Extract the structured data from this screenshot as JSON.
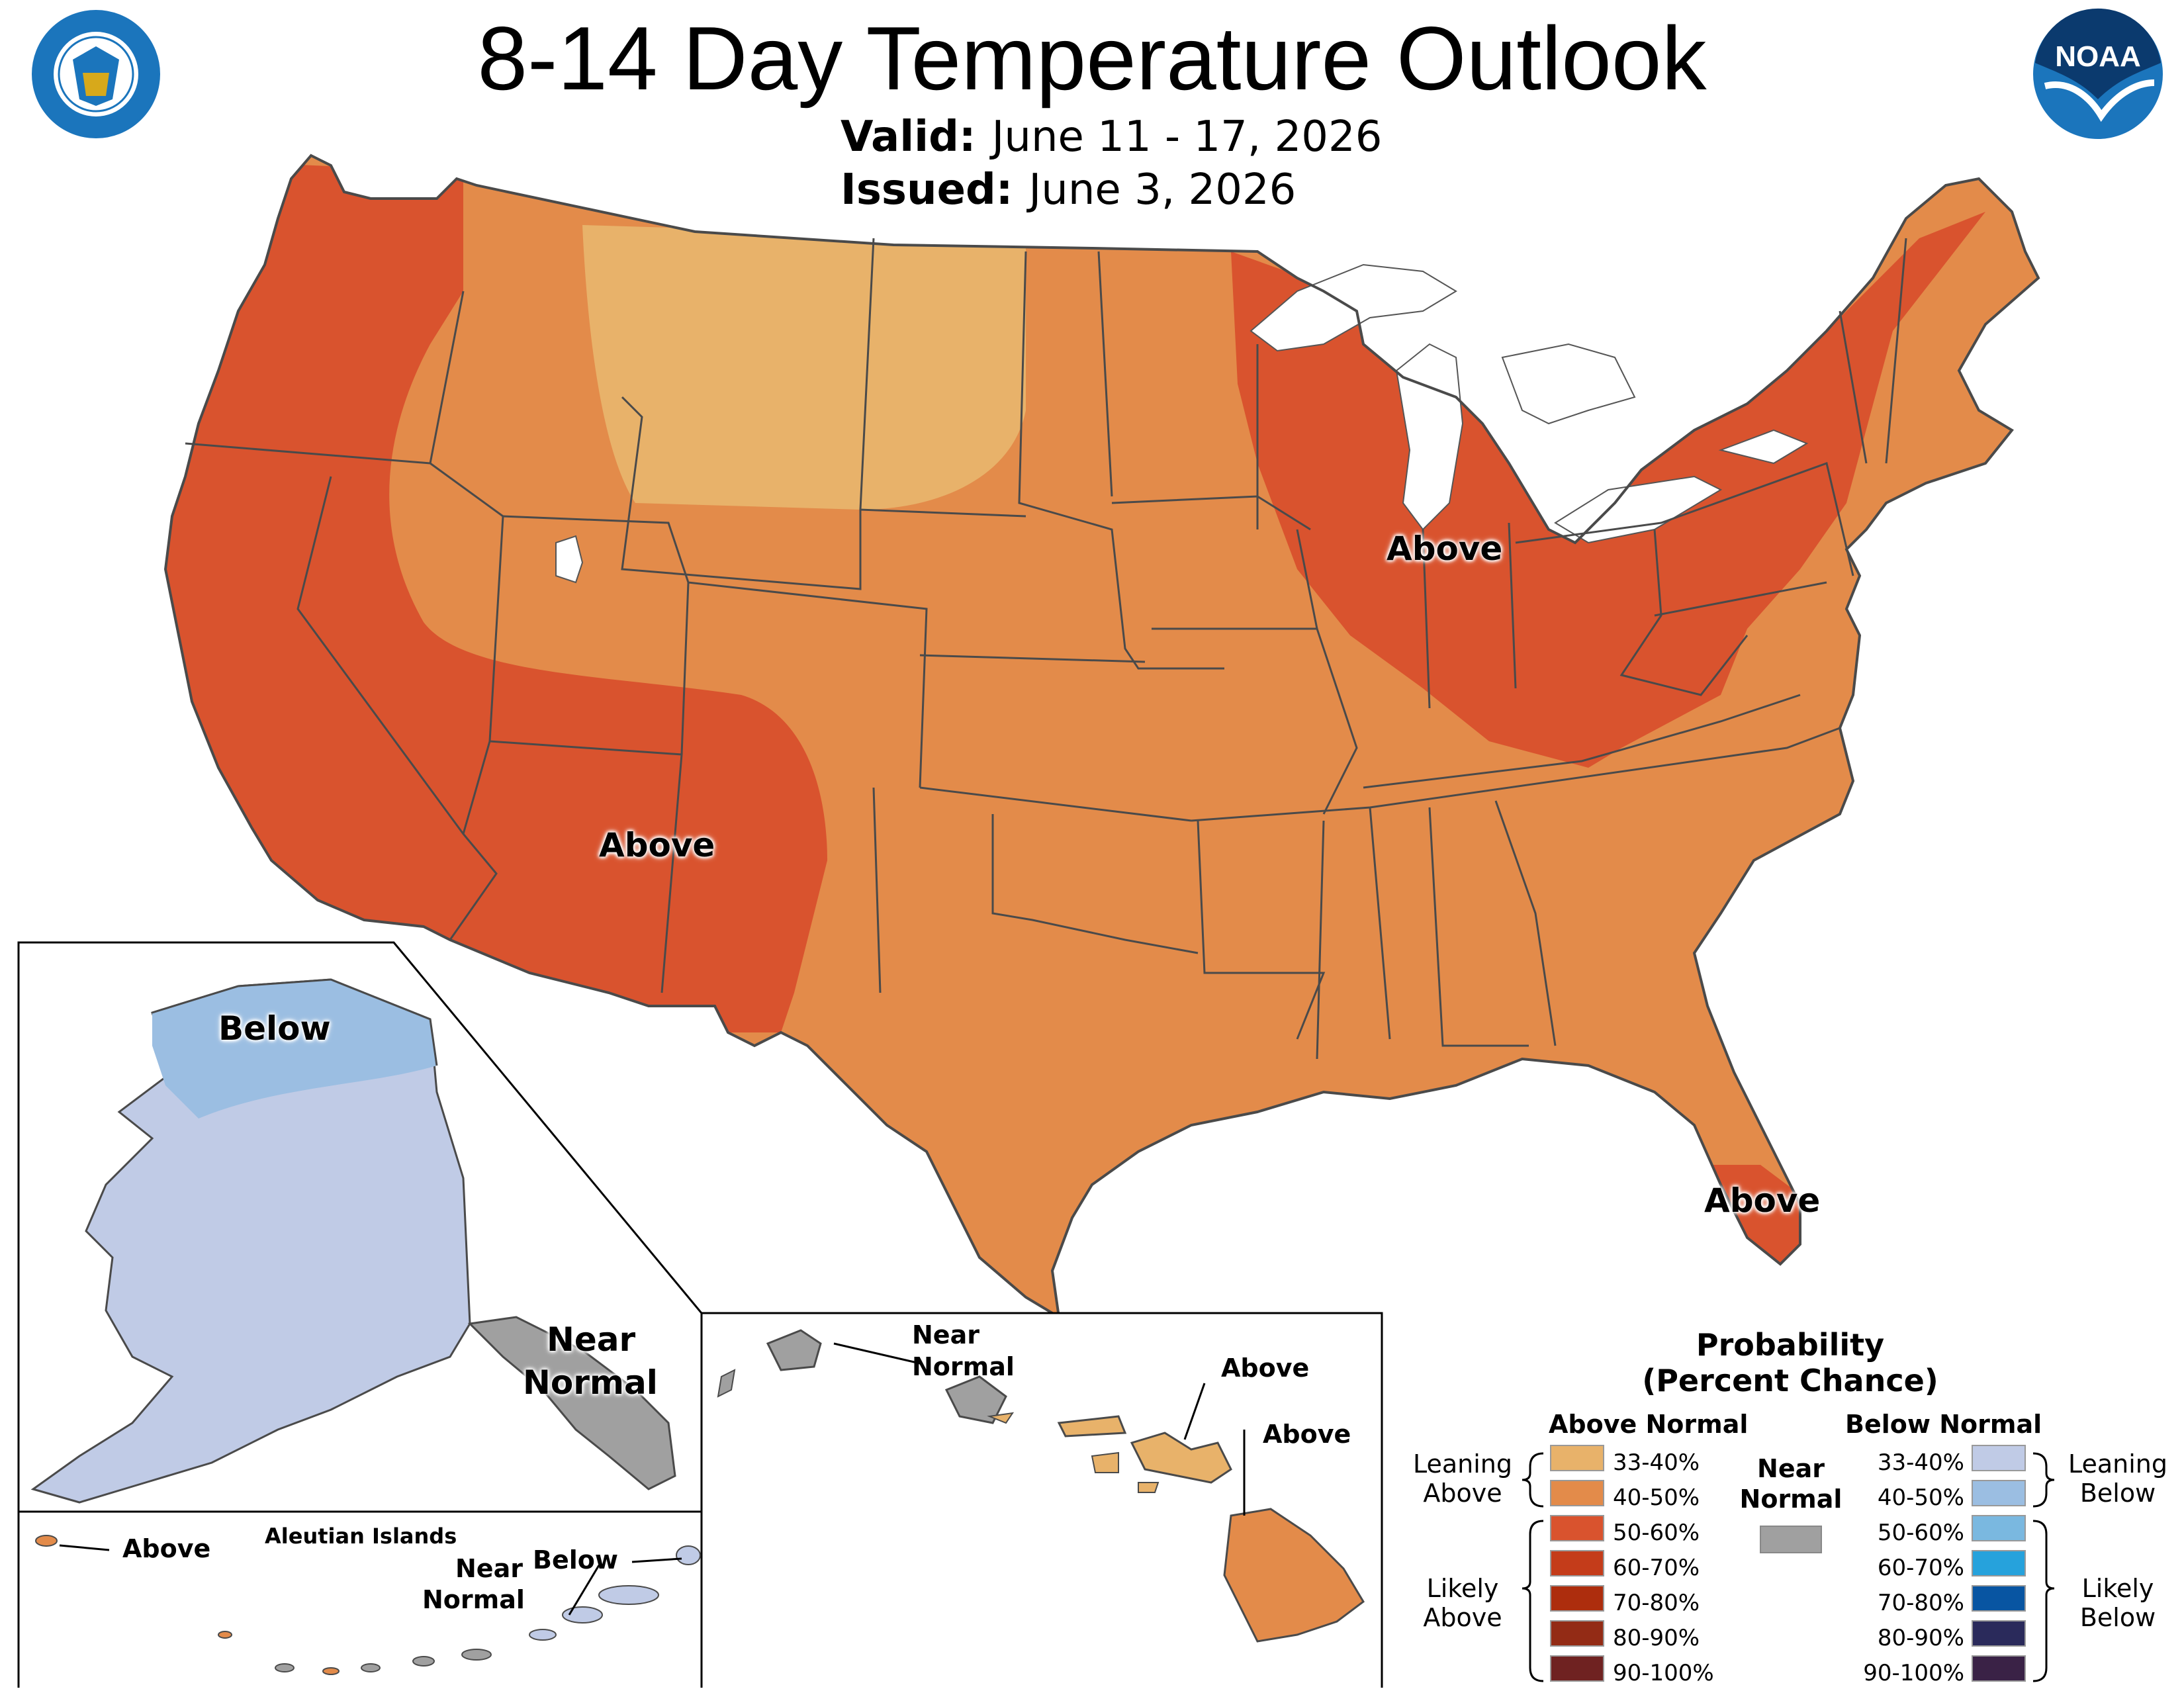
{
  "header": {
    "title": "8-14 Day Temperature Outlook",
    "valid_label": "Valid:",
    "valid_value": "June 11 - 17, 2026",
    "issued_label": "Issued:",
    "issued_value": "June 3, 2026",
    "left_logo_text": "DEPARTMENT OF COMMERCE · UNITED STATES OF AMERICA",
    "right_logo_text": "NOAA"
  },
  "map_labels": {
    "great_lakes": "Above",
    "southwest": "Above",
    "florida": "Above",
    "alaska_north": "Below",
    "alaska_se_near": "Near",
    "alaska_se_normal": "Normal",
    "aleutian_title": "Aleutian Islands",
    "aleutian_above": "Above",
    "aleutian_near": "Near",
    "aleutian_normal": "Normal",
    "aleutian_below": "Below",
    "hawaii_near": "Near",
    "hawaii_normal": "Normal",
    "hawaii_above_maui": "Above",
    "hawaii_above_big": "Above"
  },
  "colors": {
    "above_33_40": "#e8b26a",
    "above_40_50": "#e38b4a",
    "above_50_60": "#d9532e",
    "above_60_70": "#c43c1a",
    "above_70_80": "#ad2d0d",
    "above_80_90": "#932b15",
    "above_90_100": "#6f2221",
    "near_normal": "#a0a0a0",
    "below_33_40": "#c0cbe6",
    "below_40_50": "#9bbee2",
    "below_50_60": "#7ab8e0",
    "below_60_70": "#26a2dc",
    "below_70_80": "#0855a2",
    "below_80_90": "#2a2a5b",
    "below_90_100": "#3a2246"
  },
  "legend": {
    "title_line1": "Probability",
    "title_line2": "(Percent Chance)",
    "above_header": "Above Normal",
    "below_header": "Below Normal",
    "near_line1": "Near",
    "near_line2": "Normal",
    "leaning_above_1": "Leaning",
    "leaning_above_2": "Above",
    "likely_above_1": "Likely",
    "likely_above_2": "Above",
    "leaning_below_1": "Leaning",
    "leaning_below_2": "Below",
    "likely_below_1": "Likely",
    "likely_below_2": "Below",
    "above_rows": [
      "33-40%",
      "40-50%",
      "50-60%",
      "60-70%",
      "70-80%",
      "80-90%",
      "90-100%"
    ],
    "below_rows": [
      "33-40%",
      "40-50%",
      "50-60%",
      "60-70%",
      "70-80%",
      "80-90%",
      "90-100%"
    ]
  }
}
